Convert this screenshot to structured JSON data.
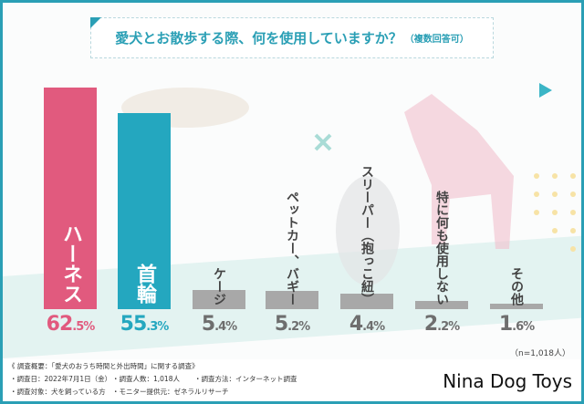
{
  "title": "愛犬とお散歩する際、何を使用していますか？",
  "title_note": "（複数回答可）",
  "sample_note": "（n=1,018人）",
  "chart_data": {
    "type": "bar",
    "title": "愛犬とお散歩する際、何を使用していますか？（複数回答可）",
    "categories": [
      "ハーネス",
      "首輪",
      "ケージ",
      "ペットカー、バギー",
      "スリーパー（抱っこ紐）",
      "特に何も使用しない",
      "その他"
    ],
    "values": [
      62.5,
      55.3,
      5.4,
      5.2,
      4.4,
      2.2,
      1.6
    ],
    "unit": "%",
    "colors": [
      "#e15a7e",
      "#24a7bf",
      "#a8a8a8",
      "#a8a8a8",
      "#a8a8a8",
      "#a8a8a8",
      "#a8a8a8"
    ],
    "label_colors": [
      "#e15a7e",
      "#24a7bf",
      "#6e6e6e",
      "#6e6e6e",
      "#6e6e6e",
      "#6e6e6e",
      "#6e6e6e"
    ],
    "ylim": [
      0,
      62.5
    ],
    "grid": false
  },
  "footer": {
    "heading": "《 調査概要：「愛犬のおうち時間と外出時間」に関する調査》",
    "date": "・調査日：2022年7月1日（金）",
    "count": "・調査人数：1,018人",
    "method": "・調査方法：インターネット調査",
    "target": "・調査対象：犬を飼っている方",
    "provider": "・モニター提供元：ゼネラルリサーチ",
    "brand": "Nina Dog Toys"
  }
}
